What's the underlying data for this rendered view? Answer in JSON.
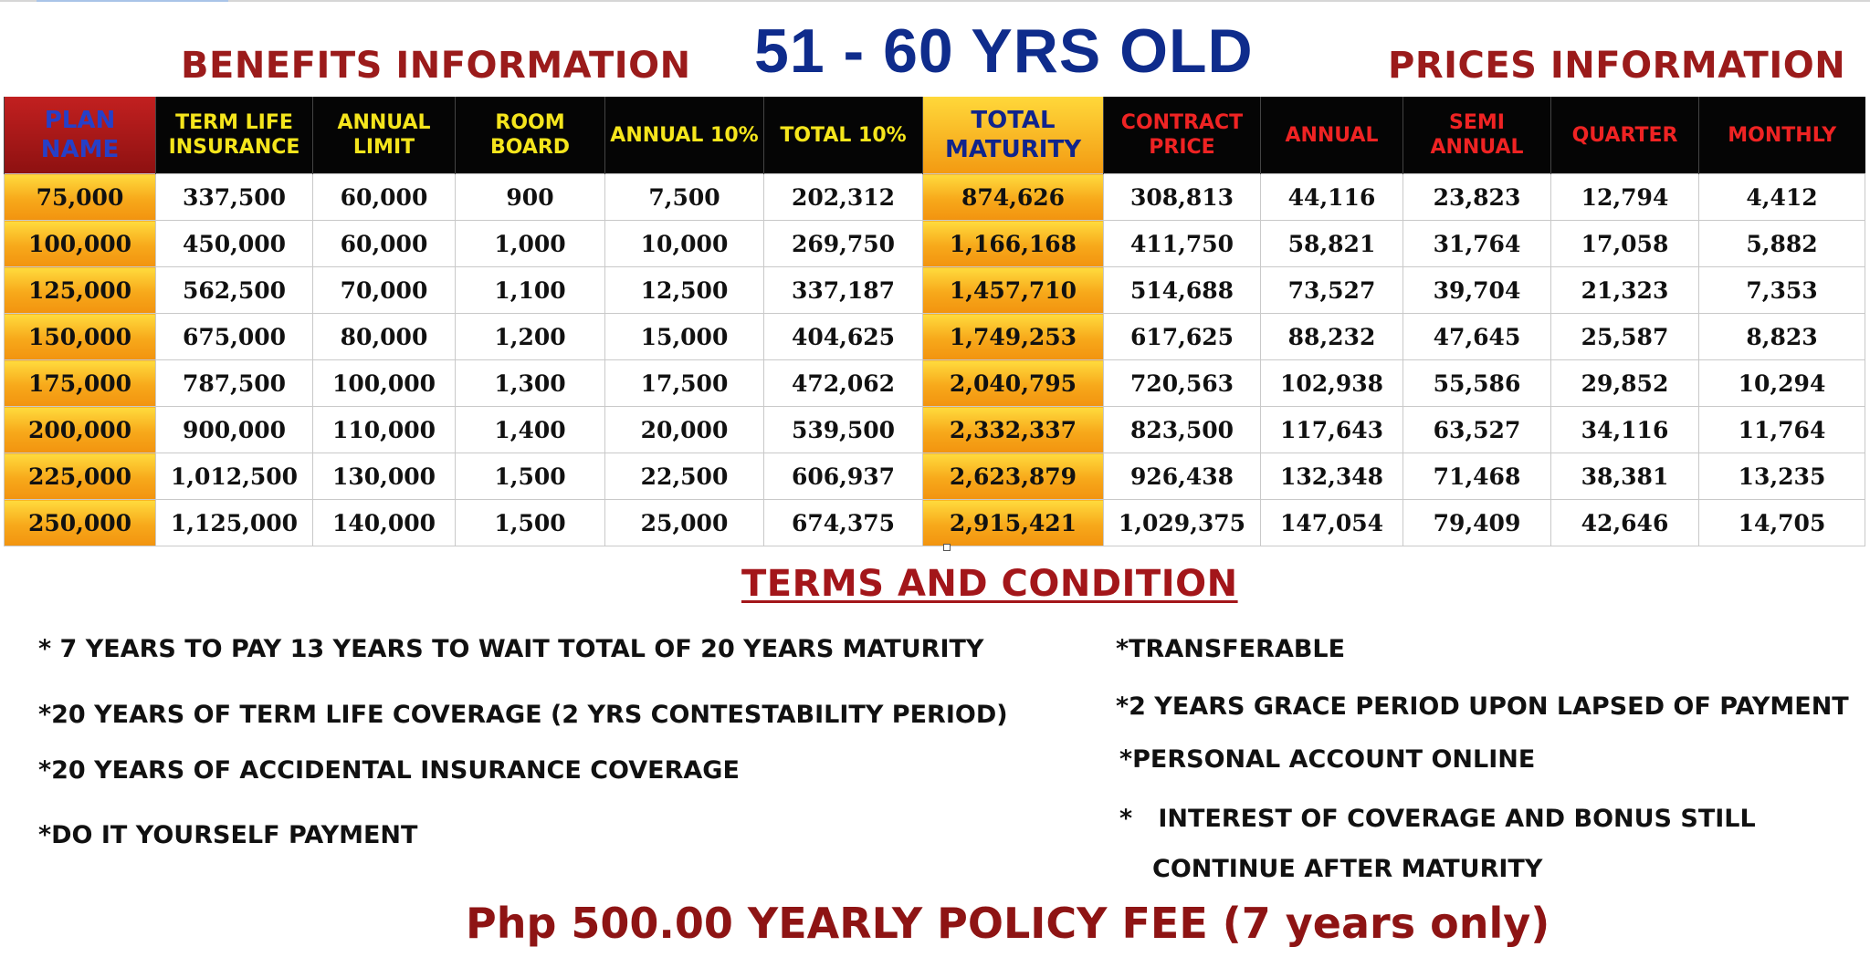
{
  "headings": {
    "benefits": "BENEFITS INFORMATION",
    "age_range": "51 - 60 YRS OLD",
    "prices": "PRICES INFORMATION"
  },
  "table": {
    "columns": [
      {
        "label": "PLAN NAME",
        "style": "plan"
      },
      {
        "label": "TERM LIFE INSURANCE",
        "style": "yellow"
      },
      {
        "label": "ANNUAL LIMIT",
        "style": "yellow"
      },
      {
        "label": "ROOM BOARD",
        "style": "yellow"
      },
      {
        "label": "ANNUAL 10%",
        "style": "yellow"
      },
      {
        "label": "TOTAL 10%",
        "style": "yellow"
      },
      {
        "label": "TOTAL MATURITY",
        "style": "maturity"
      },
      {
        "label": "CONTRACT PRICE",
        "style": "red"
      },
      {
        "label": "ANNUAL",
        "style": "red"
      },
      {
        "label": "SEMI ANNUAL",
        "style": "red"
      },
      {
        "label": "QUARTER",
        "style": "red"
      },
      {
        "label": "MONTHLY",
        "style": "red"
      }
    ],
    "rows": [
      [
        "75,000",
        "337,500",
        "60,000",
        "900",
        "7,500",
        "202,312",
        "874,626",
        "308,813",
        "44,116",
        "23,823",
        "12,794",
        "4,412"
      ],
      [
        "100,000",
        "450,000",
        "60,000",
        "1,000",
        "10,000",
        "269,750",
        "1,166,168",
        "411,750",
        "58,821",
        "31,764",
        "17,058",
        "5,882"
      ],
      [
        "125,000",
        "562,500",
        "70,000",
        "1,100",
        "12,500",
        "337,187",
        "1,457,710",
        "514,688",
        "73,527",
        "39,704",
        "21,323",
        "7,353"
      ],
      [
        "150,000",
        "675,000",
        "80,000",
        "1,200",
        "15,000",
        "404,625",
        "1,749,253",
        "617,625",
        "88,232",
        "47,645",
        "25,587",
        "8,823"
      ],
      [
        "175,000",
        "787,500",
        "100,000",
        "1,300",
        "17,500",
        "472,062",
        "2,040,795",
        "720,563",
        "102,938",
        "55,586",
        "29,852",
        "10,294"
      ],
      [
        "200,000",
        "900,000",
        "110,000",
        "1,400",
        "20,000",
        "539,500",
        "2,332,337",
        "823,500",
        "117,643",
        "63,527",
        "34,116",
        "11,764"
      ],
      [
        "225,000",
        "1,012,500",
        "130,000",
        "1,500",
        "22,500",
        "606,937",
        "2,623,879",
        "926,438",
        "132,348",
        "71,468",
        "38,381",
        "13,235"
      ],
      [
        "250,000",
        "1,125,000",
        "140,000",
        "1,500",
        "25,000",
        "674,375",
        "2,915,421",
        "1,029,375",
        "147,054",
        "79,409",
        "42,646",
        "14,705"
      ]
    ]
  },
  "terms": {
    "title": "TERMS AND CONDITION",
    "left": [
      "* 7 YEARS TO PAY 13 YEARS TO WAIT TOTAL OF 20 YEARS MATURITY",
      "*20 YEARS OF TERM LIFE COVERAGE (2 YRS CONTESTABILITY PERIOD)",
      "*20 YEARS OF ACCIDENTAL INSURANCE COVERAGE",
      "*DO IT YOURSELF PAYMENT"
    ],
    "right": [
      "*TRANSFERABLE",
      "*2 YEARS GRACE PERIOD UPON LAPSED OF PAYMENT",
      "*PERSONAL ACCOUNT ONLINE",
      "*   INTEREST OF COVERAGE AND BONUS STILL",
      "CONTINUE AFTER MATURITY"
    ]
  },
  "fee": "Php 500.00 YEARLY POLICY FEE (7 years only)",
  "colors": {
    "heading_red": "#9b1b1b",
    "heading_blue": "#0f2c8c",
    "header_yellow": "#f5e51c",
    "header_red": "#ef2323",
    "highlight_orange": "#f7a81a"
  }
}
